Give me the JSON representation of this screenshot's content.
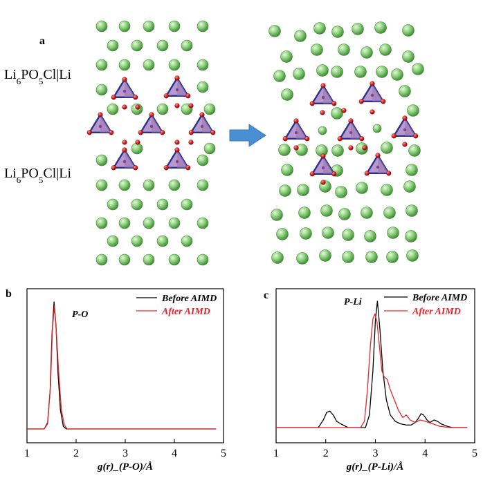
{
  "panel_a": {
    "label": "a",
    "interface_label_top": {
      "prefix": "Li",
      "sub1": "6",
      "mid": "PO",
      "sub2": "5",
      "suffix": "Cl|Li"
    },
    "interface_label_bottom": {
      "prefix": "Li",
      "sub1": "6",
      "mid": "PO",
      "sub2": "5",
      "suffix": "Cl|Li"
    },
    "arrow_icon": "right-arrow-icon"
  },
  "colors": {
    "li_atom": "#8fd27f",
    "li_atom_edge": "#3f8a35",
    "o_atom": "#d81f1f",
    "p_tetrahedron_face": "#b79acb",
    "p_tetrahedron_edge": "#2a2f8f",
    "arrow": "#4a8fd4",
    "before_line": "#000000",
    "after_line": "#e8242b"
  },
  "chart_data": [
    {
      "panel_label": "b",
      "type": "line",
      "annotation": "P-O",
      "xlabel": "g(r)_(P-O)/Å",
      "xlim": [
        1,
        5
      ],
      "xticks": [
        1,
        2,
        3,
        4,
        5
      ],
      "legend": "top-right",
      "series": [
        {
          "name": "Before AIMD",
          "color": "#000000",
          "x": [
            1.0,
            1.35,
            1.42,
            1.47,
            1.51,
            1.55,
            1.59,
            1.63,
            1.68,
            1.74,
            1.8,
            4.85
          ],
          "y": [
            0,
            0,
            0.05,
            0.3,
            0.75,
            1.0,
            0.82,
            0.45,
            0.15,
            0.02,
            0,
            0
          ]
        },
        {
          "name": "After AIMD",
          "color": "#e8242b",
          "x": [
            1.0,
            1.35,
            1.42,
            1.48,
            1.52,
            1.56,
            1.6,
            1.65,
            1.7,
            1.76,
            1.82,
            4.85
          ],
          "y": [
            0,
            0,
            0.04,
            0.35,
            0.8,
            0.97,
            0.75,
            0.42,
            0.15,
            0.03,
            0,
            0
          ]
        }
      ]
    },
    {
      "panel_label": "c",
      "type": "line",
      "annotation": "P-Li",
      "xlabel": "g(r)_(P-Li)/Å",
      "xlim": [
        1,
        5
      ],
      "xticks": [
        1,
        2,
        3,
        4,
        5
      ],
      "legend": "top-right",
      "series": [
        {
          "name": "Before AIMD",
          "color": "#000000",
          "x": [
            1.0,
            1.85,
            1.95,
            2.02,
            2.08,
            2.15,
            2.22,
            2.3,
            2.45,
            2.8,
            2.88,
            2.95,
            3.0,
            3.04,
            3.09,
            3.15,
            3.22,
            3.3,
            3.4,
            3.5,
            3.62,
            3.72,
            3.8,
            3.86,
            3.92,
            3.97,
            4.04,
            4.1,
            4.18,
            4.25,
            4.32,
            4.45,
            4.55,
            4.85
          ],
          "y": [
            0,
            0,
            0.06,
            0.12,
            0.13,
            0.1,
            0.05,
            0.03,
            0,
            0,
            0.1,
            0.45,
            0.85,
            1.0,
            0.78,
            0.45,
            0.22,
            0.1,
            0.05,
            0.03,
            0.02,
            0.02,
            0.04,
            0.07,
            0.11,
            0.1,
            0.06,
            0.04,
            0.06,
            0.05,
            0.03,
            0.01,
            0,
            0
          ]
        },
        {
          "name": "After AIMD",
          "color": "#e8242b",
          "x": [
            1.0,
            2.7,
            2.78,
            2.84,
            2.9,
            2.95,
            2.99,
            3.03,
            3.08,
            3.13,
            3.18,
            3.24,
            3.3,
            3.38,
            3.46,
            3.55,
            3.62,
            3.7,
            3.8,
            3.9,
            4.0,
            4.15,
            4.3,
            4.5,
            4.85
          ],
          "y": [
            0,
            0,
            0.05,
            0.3,
            0.65,
            0.86,
            0.9,
            0.84,
            0.65,
            0.45,
            0.4,
            0.38,
            0.3,
            0.22,
            0.14,
            0.08,
            0.1,
            0.06,
            0.04,
            0.06,
            0.05,
            0.03,
            0.01,
            0,
            0
          ]
        }
      ]
    }
  ]
}
